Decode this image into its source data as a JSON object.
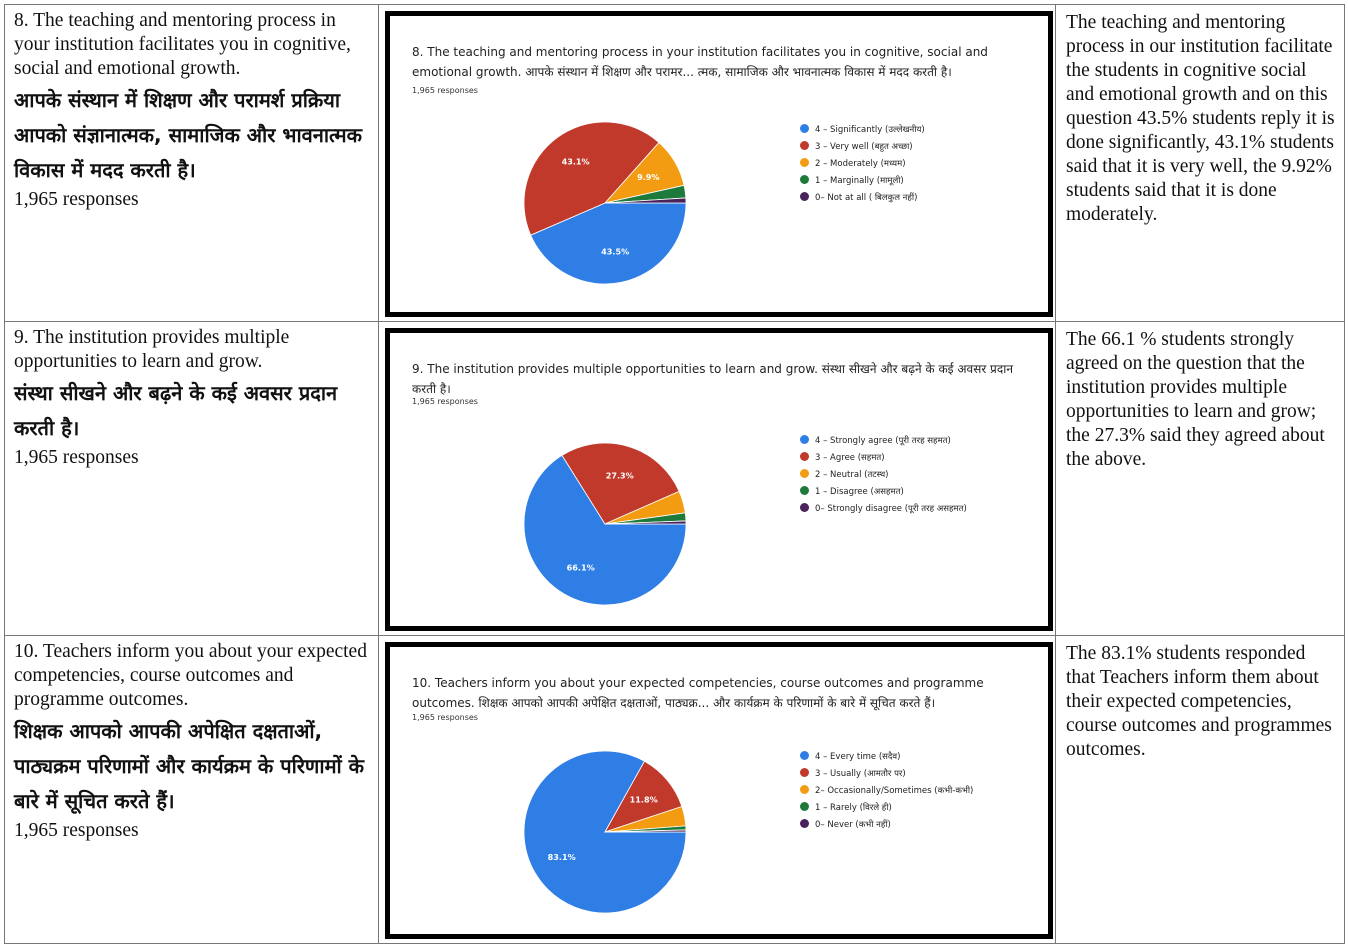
{
  "rows": [
    {
      "question_en": "8. The teaching and mentoring process in your institution facilitates you in cognitive, social and emotional growth.",
      "question_hi": "आपके संस्थान में शिक्षण और परामर्श प्रक्रिया आपको संज्ञानात्मक, सामाजिक और भावनात्मक विकास में मदद करती है।",
      "responses": "1,965 responses",
      "chart_title": "8. The teaching and mentoring process in your institution facilitates you in cognitive, social and emotional growth. आपके संस्थान में शिक्षण और परामर... त्मक, सामाजिक और भावनात्मक विकास में मदद करती है।",
      "chart_responses": "1,965 responses",
      "legend": [
        "4 – Significantly (उल्लेखनीय)",
        "3 – Very well (बहुत अच्छा)",
        "2 – Moderately (मध्यम)",
        "1 – Marginally (मामूली)",
        "0– Not at all ( बिलकुल नहीं)"
      ],
      "description": "The teaching and mentoring process in our institution facilitate the students in cognitive social and emotional growth and on this question 43.5% students reply it is done significantly, 43.1% students said that it is very well, the  9.92% students said that it is done moderately."
    },
    {
      "question_en": "9. The institution provides multiple opportunities to learn and grow.",
      "question_hi": "संस्था सीखने और बढ़ने के कई अवसर प्रदान करती है।",
      "responses": "1,965 responses",
      "chart_title": "9. The institution provides multiple opportunities to learn and grow. संस्था सीखने और बढ़ने के कई अवसर प्रदान करती है।",
      "chart_responses": "1,965 responses",
      "legend": [
        "4 – Strongly agree (पूरी तरह सहमत)",
        "3 – Agree (सहमत)",
        "2 – Neutral (तटस्थ)",
        "1 – Disagree (असहमत)",
        "0– Strongly disagree (पूरी तरह असहमत)"
      ],
      "description": "The 66.1 % students strongly agreed on the question that the institution provides multiple opportunities to learn and grow; the 27.3% said they agreed about the above."
    },
    {
      "question_en": "10. Teachers inform you about your expected competencies, course outcomes and programme outcomes.",
      "question_hi": "शिक्षक आपको आपकी अपेक्षित दक्षताओं, पाठ्यक्रम परिणामों और कार्यक्रम के परिणामों के बारे में सूचित करते हैं।",
      "responses": "1,965 responses",
      "chart_title": "10. Teachers inform you about your expected competencies, course outcomes and programme outcomes. शिक्षक आपको आपकी अपेक्षित दक्षताओं, पाठ्यक्र... और कार्यक्रम के परिणामों के बारे में सूचित करते हैं।",
      "chart_responses": "1,965 responses",
      "legend": [
        "4 – Every time (सदैव)",
        "3 – Usually (आमतौर पर)",
        "2– Occasionally/Sometimes (कभी-कभी)",
        "1 – Rarely (विरले ही)",
        "0– Never (कभी नहीं)"
      ],
      "description": "The 83.1% students responded that Teachers inform them about their expected competencies, course outcomes and programmes outcomes."
    }
  ],
  "colors": [
    "#2e7ee6",
    "#c0392b",
    "#f39c12",
    "#1e7a3a",
    "#4a235a"
  ],
  "chart_data": [
    {
      "type": "pie",
      "categories": [
        "4 – Significantly (उल्लेखनीय)",
        "3 – Very well (बहुत अच्छा)",
        "2 – Moderately (मध्यम)",
        "1 – Marginally (मामूली)",
        "0– Not at all ( बिलकुल नहीं)"
      ],
      "values": [
        43.5,
        43.1,
        9.9,
        2.5,
        1.0
      ],
      "labels": [
        "43.5%",
        "43.1%",
        "9.9%",
        "",
        ""
      ]
    },
    {
      "type": "pie",
      "categories": [
        "4 – Strongly agree (पूरी तरह सहमत)",
        "3 – Agree (सहमत)",
        "2 – Neutral (तटस्थ)",
        "1 – Disagree (असहमत)",
        "0– Strongly disagree (पूरी तरह असहमत)"
      ],
      "values": [
        66.1,
        27.3,
        4.4,
        1.6,
        0.6
      ],
      "labels": [
        "66.1%",
        "27.3%",
        "",
        "",
        ""
      ]
    },
    {
      "type": "pie",
      "categories": [
        "4 – Every time (सदैव)",
        "3 – Usually (आमतौर पर)",
        "2– Occasionally/Sometimes (कभी-कभी)",
        "1 – Rarely (विरले ही)",
        "0– Never (कभी नहीं)"
      ],
      "values": [
        83.1,
        11.8,
        3.9,
        0.8,
        0.4
      ],
      "labels": [
        "83.1%",
        "11.8%",
        "",
        "",
        ""
      ]
    }
  ]
}
